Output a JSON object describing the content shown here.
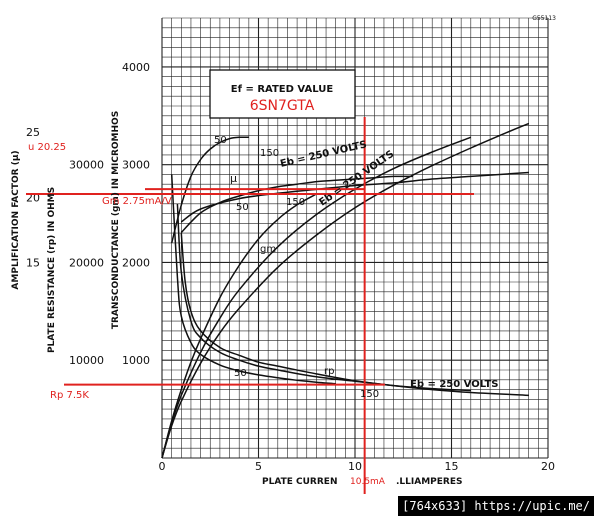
{
  "figure_code": "G55113",
  "legend_box": {
    "line1": "Ef = RATED VALUE",
    "line2": "6SN7GTA",
    "line2_color": "#e0221f"
  },
  "axes": {
    "x_label": "PLATE CURREN",
    "x_label_tail": ".LLIAMPERES",
    "x_ticks": [
      "0",
      "5",
      "10",
      "15",
      "20"
    ],
    "y_gm_label": "TRANSCONDUCTANCE (gm) IN MICROMHOS",
    "y_gm_ticks": [
      "1000",
      "2000",
      "3000",
      "4000"
    ],
    "y_rp_label": "PLATE RESISTANCE (rp) IN OHMS",
    "y_rp_ticks": [
      "10000",
      "20000",
      "30000"
    ],
    "y_mu_label": "AMPLIFICATION FACTOR (μ)",
    "y_mu_ticks": [
      "15",
      "20",
      "25"
    ]
  },
  "curve_labels": {
    "mu_50": "50",
    "mu_150": "150",
    "mu_sym": "μ",
    "mu_eb": "Eb = 250 VOLTS",
    "gm_50": "50",
    "gm_150": "150",
    "gm_sym": "gm",
    "gm_eb": "Eb = 250 VOLTS",
    "rp_50": "50",
    "rp_sym": "rp",
    "rp_150": "150",
    "rp_eb": "Eb = 250 VOLTS"
  },
  "annotations": {
    "color": "#e0221f",
    "mu_note": "u 20.25",
    "gm_note": "Gm 2.75mA/V",
    "rp_note": "Rp 7.5K",
    "ip_note": "10.5mA"
  },
  "footer": {
    "text": "[764x633] https://upic.me/"
  },
  "chart_data": {
    "type": "line",
    "title": "6SN7GTA",
    "xlabel": "PLATE CURREN .LLIAMPERES",
    "xlim": [
      0,
      20
    ],
    "ylim_gm": [
      0,
      4500
    ],
    "ylim_rp": [
      0,
      45000
    ],
    "ylim_mu": [
      0,
      33.75
    ],
    "series": [
      {
        "name": "μ Eb=50",
        "axis": "mu",
        "x": [
          0.5,
          1,
          1.5,
          2,
          2.5,
          3,
          3.5,
          4,
          4.5
        ],
        "y": [
          16.5,
          19.4,
          21.6,
          22.9,
          23.7,
          24.2,
          24.5,
          24.6,
          24.6
        ]
      },
      {
        "name": "μ Eb=150",
        "axis": "mu",
        "x": [
          1,
          2,
          3,
          4,
          5,
          6,
          7,
          8,
          9,
          10,
          11,
          12,
          13
        ],
        "y": [
          17.3,
          18.8,
          19.6,
          20.1,
          20.5,
          20.8,
          21.0,
          21.2,
          21.3,
          21.4,
          21.5,
          21.6,
          21.6
        ]
      },
      {
        "name": "μ Eb=250",
        "axis": "mu",
        "x": [
          1,
          2,
          4,
          6,
          8,
          10,
          12,
          14,
          16,
          18,
          19
        ],
        "y": [
          18.1,
          19.1,
          19.9,
          20.3,
          20.6,
          20.9,
          21.1,
          21.4,
          21.6,
          21.8,
          21.9
        ]
      },
      {
        "name": "gm Eb=50",
        "axis": "gm",
        "x": [
          0,
          0.5,
          1,
          1.5,
          2,
          3,
          4,
          5,
          6,
          7,
          8
        ],
        "y": [
          0,
          380,
          700,
          980,
          1220,
          1640,
          1970,
          2240,
          2440,
          2590,
          2700
        ]
      },
      {
        "name": "gm Eb=150",
        "axis": "gm",
        "x": [
          0,
          0.5,
          1,
          2,
          3,
          4,
          6,
          8,
          10,
          12,
          14,
          16
        ],
        "y": [
          0,
          360,
          640,
          1080,
          1430,
          1720,
          2160,
          2490,
          2750,
          2960,
          3130,
          3280
        ]
      },
      {
        "name": "gm Eb=250",
        "axis": "gm",
        "x": [
          0,
          0.5,
          1,
          2,
          3,
          4,
          6,
          8,
          10,
          12,
          14,
          16,
          18,
          19
        ],
        "y": [
          0,
          330,
          580,
          970,
          1280,
          1530,
          1950,
          2280,
          2560,
          2790,
          2990,
          3170,
          3340,
          3420
        ]
      },
      {
        "name": "rp Eb=50",
        "axis": "rp",
        "x": [
          0.5,
          0.8,
          1,
          1.5,
          2,
          3,
          4,
          5,
          6,
          7,
          8,
          9
        ],
        "y": [
          29000,
          18500,
          14500,
          11800,
          10600,
          9500,
          8900,
          8500,
          8200,
          7950,
          7750,
          7600
        ]
      },
      {
        "name": "rp Eb=150",
        "axis": "rp",
        "x": [
          0.8,
          1,
          1.5,
          2,
          3,
          4,
          5,
          6,
          8,
          10,
          12,
          14,
          16
        ],
        "y": [
          26000,
          19000,
          14000,
          12300,
          10800,
          10000,
          9400,
          9000,
          8300,
          7850,
          7400,
          7100,
          6900
        ]
      },
      {
        "name": "rp Eb=250",
        "axis": "rp",
        "x": [
          1,
          1.2,
          1.5,
          2,
          3,
          4,
          5,
          6,
          8,
          10,
          12,
          14,
          16,
          18,
          19
        ],
        "y": [
          23000,
          18000,
          15000,
          13000,
          11300,
          10500,
          9800,
          9400,
          8600,
          7900,
          7400,
          7000,
          6700,
          6500,
          6400
        ]
      }
    ],
    "reference_lines": {
      "x_current_mA": 10.5,
      "mu": 20.25,
      "gm_mA_per_V": 2.75,
      "rp_ohms": 7500
    }
  }
}
